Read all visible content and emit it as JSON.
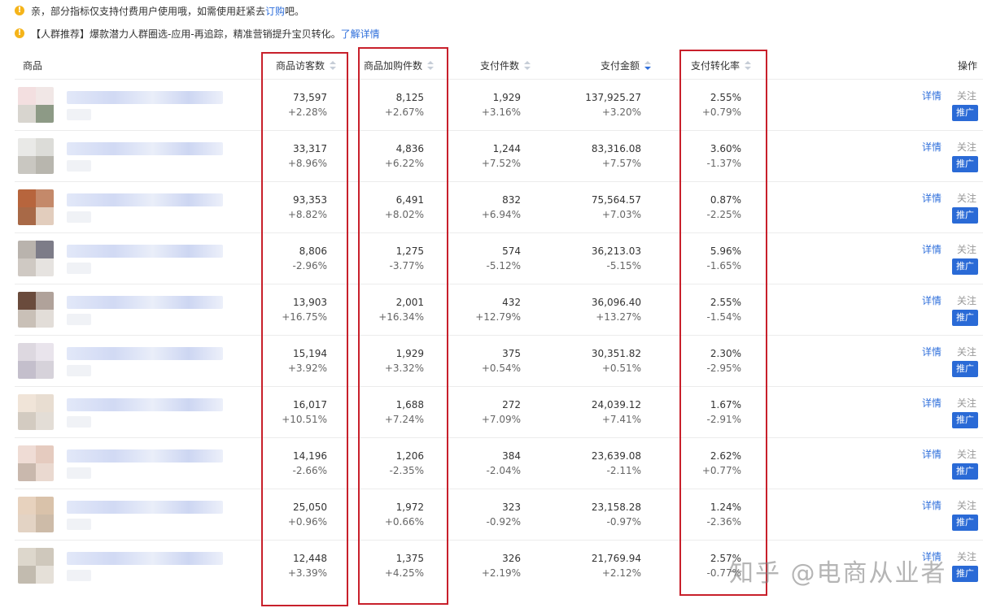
{
  "notices": {
    "n1_text": "亲，部分指标仅支持付费用户使用哦，如需使用赶紧去",
    "n1_link": "订购",
    "n1_after": "吧。",
    "n2_text": "【人群推荐】爆款潜力人群圈选-应用-再追踪，精准营销提升宝贝转化。",
    "n2_link": "了解详情"
  },
  "table": {
    "headers": {
      "product": "商品",
      "visitors": "商品访客数",
      "cart_items": "商品加购件数",
      "paid_items": "支付件数",
      "paid_amount": "支付金额",
      "conversion": "支付转化率",
      "actions": "操作"
    },
    "rows": [
      {
        "visitors": "73,597",
        "visitors_delta": "+2.28%",
        "cart": "8,125",
        "cart_delta": "+2.67%",
        "paid": "1,929",
        "paid_delta": "+3.16%",
        "amount": "137,925.27",
        "amount_delta": "+3.20%",
        "conv": "2.55%",
        "conv_delta": "+0.79%"
      },
      {
        "visitors": "33,317",
        "visitors_delta": "+8.96%",
        "cart": "4,836",
        "cart_delta": "+6.22%",
        "paid": "1,244",
        "paid_delta": "+7.52%",
        "amount": "83,316.08",
        "amount_delta": "+7.57%",
        "conv": "3.60%",
        "conv_delta": "-1.37%"
      },
      {
        "visitors": "93,353",
        "visitors_delta": "+8.82%",
        "cart": "6,491",
        "cart_delta": "+8.02%",
        "paid": "832",
        "paid_delta": "+6.94%",
        "amount": "75,564.57",
        "amount_delta": "+7.03%",
        "conv": "0.87%",
        "conv_delta": "-2.25%"
      },
      {
        "visitors": "8,806",
        "visitors_delta": "-2.96%",
        "cart": "1,275",
        "cart_delta": "-3.77%",
        "paid": "574",
        "paid_delta": "-5.12%",
        "amount": "36,213.03",
        "amount_delta": "-5.15%",
        "conv": "5.96%",
        "conv_delta": "-1.65%"
      },
      {
        "visitors": "13,903",
        "visitors_delta": "+16.75%",
        "cart": "2,001",
        "cart_delta": "+16.34%",
        "paid": "432",
        "paid_delta": "+12.79%",
        "amount": "36,096.40",
        "amount_delta": "+13.27%",
        "conv": "2.55%",
        "conv_delta": "-1.54%"
      },
      {
        "visitors": "15,194",
        "visitors_delta": "+3.92%",
        "cart": "1,929",
        "cart_delta": "+3.32%",
        "paid": "375",
        "paid_delta": "+0.54%",
        "amount": "30,351.82",
        "amount_delta": "+0.51%",
        "conv": "2.30%",
        "conv_delta": "-2.95%"
      },
      {
        "visitors": "16,017",
        "visitors_delta": "+10.51%",
        "cart": "1,688",
        "cart_delta": "+7.24%",
        "paid": "272",
        "paid_delta": "+7.09%",
        "amount": "24,039.12",
        "amount_delta": "+7.41%",
        "conv": "1.67%",
        "conv_delta": "-2.91%"
      },
      {
        "visitors": "14,196",
        "visitors_delta": "-2.66%",
        "cart": "1,206",
        "cart_delta": "-2.35%",
        "paid": "384",
        "paid_delta": "-2.04%",
        "amount": "23,639.08",
        "amount_delta": "-2.11%",
        "conv": "2.62%",
        "conv_delta": "+0.77%"
      },
      {
        "visitors": "25,050",
        "visitors_delta": "+0.96%",
        "cart": "1,972",
        "cart_delta": "+0.66%",
        "paid": "323",
        "paid_delta": "-0.92%",
        "amount": "23,158.28",
        "amount_delta": "-0.97%",
        "conv": "1.24%",
        "conv_delta": "-2.36%"
      },
      {
        "visitors": "12,448",
        "visitors_delta": "+3.39%",
        "cart": "1,375",
        "cart_delta": "+4.25%",
        "paid": "326",
        "paid_delta": "+2.19%",
        "amount": "21,769.94",
        "amount_delta": "+2.12%",
        "conv": "2.57%",
        "conv_delta": "-0.77%"
      }
    ],
    "actions": {
      "detail": "详情",
      "follow": "关注",
      "promote": "推广"
    }
  },
  "watermark": "知乎 @电商从业者",
  "colors": {
    "link": "#2f6fdb",
    "promote_button": "#2a6ad6",
    "highlight_box": "#c8202b",
    "warning_icon": "#f5b41a"
  }
}
